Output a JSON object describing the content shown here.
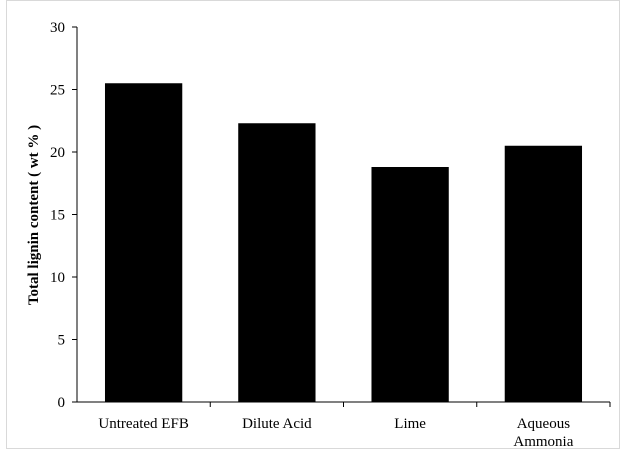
{
  "chart_data": {
    "type": "bar",
    "categories": [
      "Untreated EFB",
      "Dilute Acid",
      "Lime",
      "Aqueous Ammonia"
    ],
    "category_label_lines": [
      [
        "Untreated EFB"
      ],
      [
        "Dilute Acid"
      ],
      [
        "Lime"
      ],
      [
        "Aqueous",
        "Ammonia"
      ]
    ],
    "values": [
      25.5,
      22.3,
      18.8,
      20.5
    ],
    "ylabel": "Total lignin content ( wt % )",
    "xlabel": "",
    "ylim": [
      0,
      30
    ],
    "yticks": [
      0,
      5,
      10,
      15,
      20,
      25,
      30
    ],
    "grid": false,
    "legend": "none",
    "bar_color": "#000000"
  }
}
